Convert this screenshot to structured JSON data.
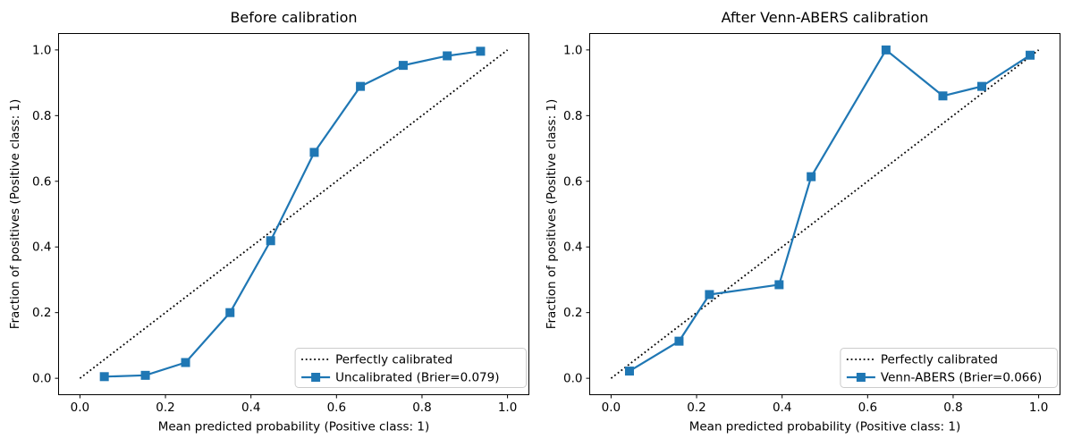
{
  "figure": {
    "background": "#ffffff",
    "accent_color": "#1f77b4",
    "reference_color": "#000000",
    "legend_border_color": "#cccccc"
  },
  "chart_data": [
    {
      "type": "line",
      "title": "Before calibration",
      "xlabel": "Mean predicted probability (Positive class: 1)",
      "ylabel": "Fraction of positives (Positive class: 1)",
      "xlim": [
        -0.05,
        1.05
      ],
      "ylim": [
        -0.05,
        1.05
      ],
      "xticks": [
        0.0,
        0.2,
        0.4,
        0.6,
        0.8,
        1.0
      ],
      "yticks": [
        0.0,
        0.2,
        0.4,
        0.6,
        0.8,
        1.0
      ],
      "grid": false,
      "legend_position": "lower right",
      "legend": [
        "Perfectly calibrated",
        "Uncalibrated (Brier=0.079)"
      ],
      "series": [
        {
          "name": "Perfectly calibrated",
          "role": "reference-line",
          "color": "#000000",
          "line_style": "dotted",
          "marker": "none",
          "x": [
            0.0,
            1.0
          ],
          "y": [
            0.0,
            1.0
          ]
        },
        {
          "name": "Uncalibrated (Brier=0.079)",
          "role": "calibration-curve",
          "color": "#1f77b4",
          "line_style": "solid",
          "marker": "square",
          "x": [
            0.057,
            0.153,
            0.247,
            0.351,
            0.446,
            0.548,
            0.656,
            0.756,
            0.859,
            0.937
          ],
          "y": [
            0.005,
            0.009,
            0.048,
            0.2,
            0.419,
            0.688,
            0.889,
            0.953,
            0.982,
            0.996
          ]
        }
      ]
    },
    {
      "type": "line",
      "title": "After Venn-ABERS calibration",
      "xlabel": "Mean predicted probability (Positive class: 1)",
      "ylabel": "Fraction of positives (Positive class: 1)",
      "xlim": [
        -0.05,
        1.05
      ],
      "ylim": [
        -0.05,
        1.05
      ],
      "xticks": [
        0.0,
        0.2,
        0.4,
        0.6,
        0.8,
        1.0
      ],
      "yticks": [
        0.0,
        0.2,
        0.4,
        0.6,
        0.8,
        1.0
      ],
      "grid": false,
      "legend_position": "lower right",
      "legend": [
        "Perfectly calibrated",
        "Venn-ABERS (Brier=0.066)"
      ],
      "series": [
        {
          "name": "Perfectly calibrated",
          "role": "reference-line",
          "color": "#000000",
          "line_style": "dotted",
          "marker": "none",
          "x": [
            0.0,
            1.0
          ],
          "y": [
            0.0,
            1.0
          ]
        },
        {
          "name": "Venn-ABERS (Brier=0.066)",
          "role": "calibration-curve",
          "color": "#1f77b4",
          "line_style": "solid",
          "marker": "square",
          "x": [
            0.043,
            0.159,
            0.23,
            0.393,
            0.468,
            0.643,
            0.776,
            0.867,
            0.98
          ],
          "y": [
            0.022,
            0.113,
            0.255,
            0.285,
            0.614,
            1.0,
            0.86,
            0.889,
            0.984
          ]
        }
      ]
    }
  ]
}
